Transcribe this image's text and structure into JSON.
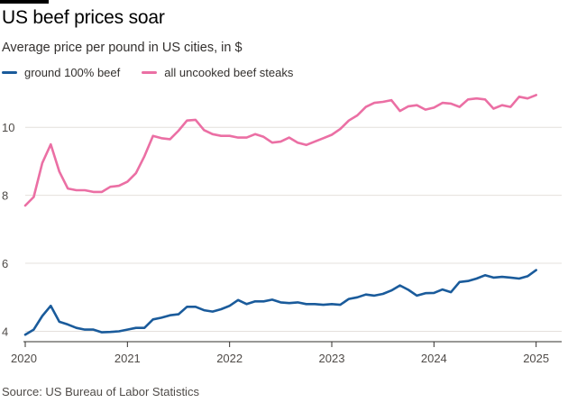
{
  "page": {
    "title": "US beef prices soar",
    "subtitle": "Average price per pound in US cities, in $",
    "source": "Source: US Bureau of Labor Statistics"
  },
  "colors": {
    "ground_beef": "#1a5b9b",
    "steaks": "#eb6fa4",
    "grid": "#e4e0dc",
    "axis": "#33302e",
    "tick_text": "#4f4b48"
  },
  "chart_data": {
    "type": "line",
    "title": "US beef prices soar",
    "subtitle": "Average price per pound in US cities, in $",
    "xlabel": "",
    "ylabel": "",
    "xlim": [
      2020.0,
      2025.25
    ],
    "ylim": [
      3.8,
      11.2
    ],
    "yticks": [
      4,
      6,
      8,
      10
    ],
    "xticks": [
      2020,
      2021,
      2022,
      2023,
      2024,
      2025
    ],
    "ytick_labels": [
      "4",
      "6",
      "8",
      "10"
    ],
    "xtick_labels": [
      "2020",
      "2021",
      "2022",
      "2023",
      "2024",
      "2025"
    ],
    "legend_position": "top-left",
    "series": [
      {
        "name": "ground 100% beef",
        "color": "#1a5b9b",
        "x_start": 2020.0,
        "step": 0.0833333,
        "values": [
          3.9,
          4.05,
          4.45,
          4.75,
          4.28,
          4.2,
          4.1,
          4.05,
          4.05,
          3.97,
          3.98,
          4.0,
          4.05,
          4.1,
          4.1,
          4.35,
          4.4,
          4.47,
          4.5,
          4.72,
          4.72,
          4.62,
          4.58,
          4.65,
          4.75,
          4.92,
          4.8,
          4.88,
          4.88,
          4.93,
          4.85,
          4.83,
          4.85,
          4.8,
          4.8,
          4.78,
          4.8,
          4.78,
          4.95,
          5.0,
          5.08,
          5.05,
          5.1,
          5.2,
          5.35,
          5.22,
          5.05,
          5.12,
          5.13,
          5.23,
          5.15,
          5.45,
          5.48,
          5.55,
          5.65,
          5.58,
          5.6,
          5.58,
          5.55,
          5.62,
          5.8
        ]
      },
      {
        "name": "all uncooked beef steaks",
        "color": "#eb6fa4",
        "x_start": 2020.0,
        "step": 0.0833333,
        "values": [
          7.7,
          7.95,
          8.95,
          9.5,
          8.7,
          8.2,
          8.15,
          8.15,
          8.1,
          8.1,
          8.25,
          8.28,
          8.4,
          8.65,
          9.15,
          9.75,
          9.68,
          9.65,
          9.9,
          10.2,
          10.22,
          9.92,
          9.8,
          9.75,
          9.75,
          9.7,
          9.7,
          9.8,
          9.72,
          9.55,
          9.58,
          9.7,
          9.55,
          9.48,
          9.58,
          9.68,
          9.78,
          9.95,
          10.2,
          10.35,
          10.6,
          10.72,
          10.75,
          10.8,
          10.48,
          10.62,
          10.65,
          10.52,
          10.58,
          10.72,
          10.7,
          10.6,
          10.82,
          10.85,
          10.82,
          10.55,
          10.65,
          10.6,
          10.9,
          10.85,
          10.95
        ]
      }
    ]
  }
}
